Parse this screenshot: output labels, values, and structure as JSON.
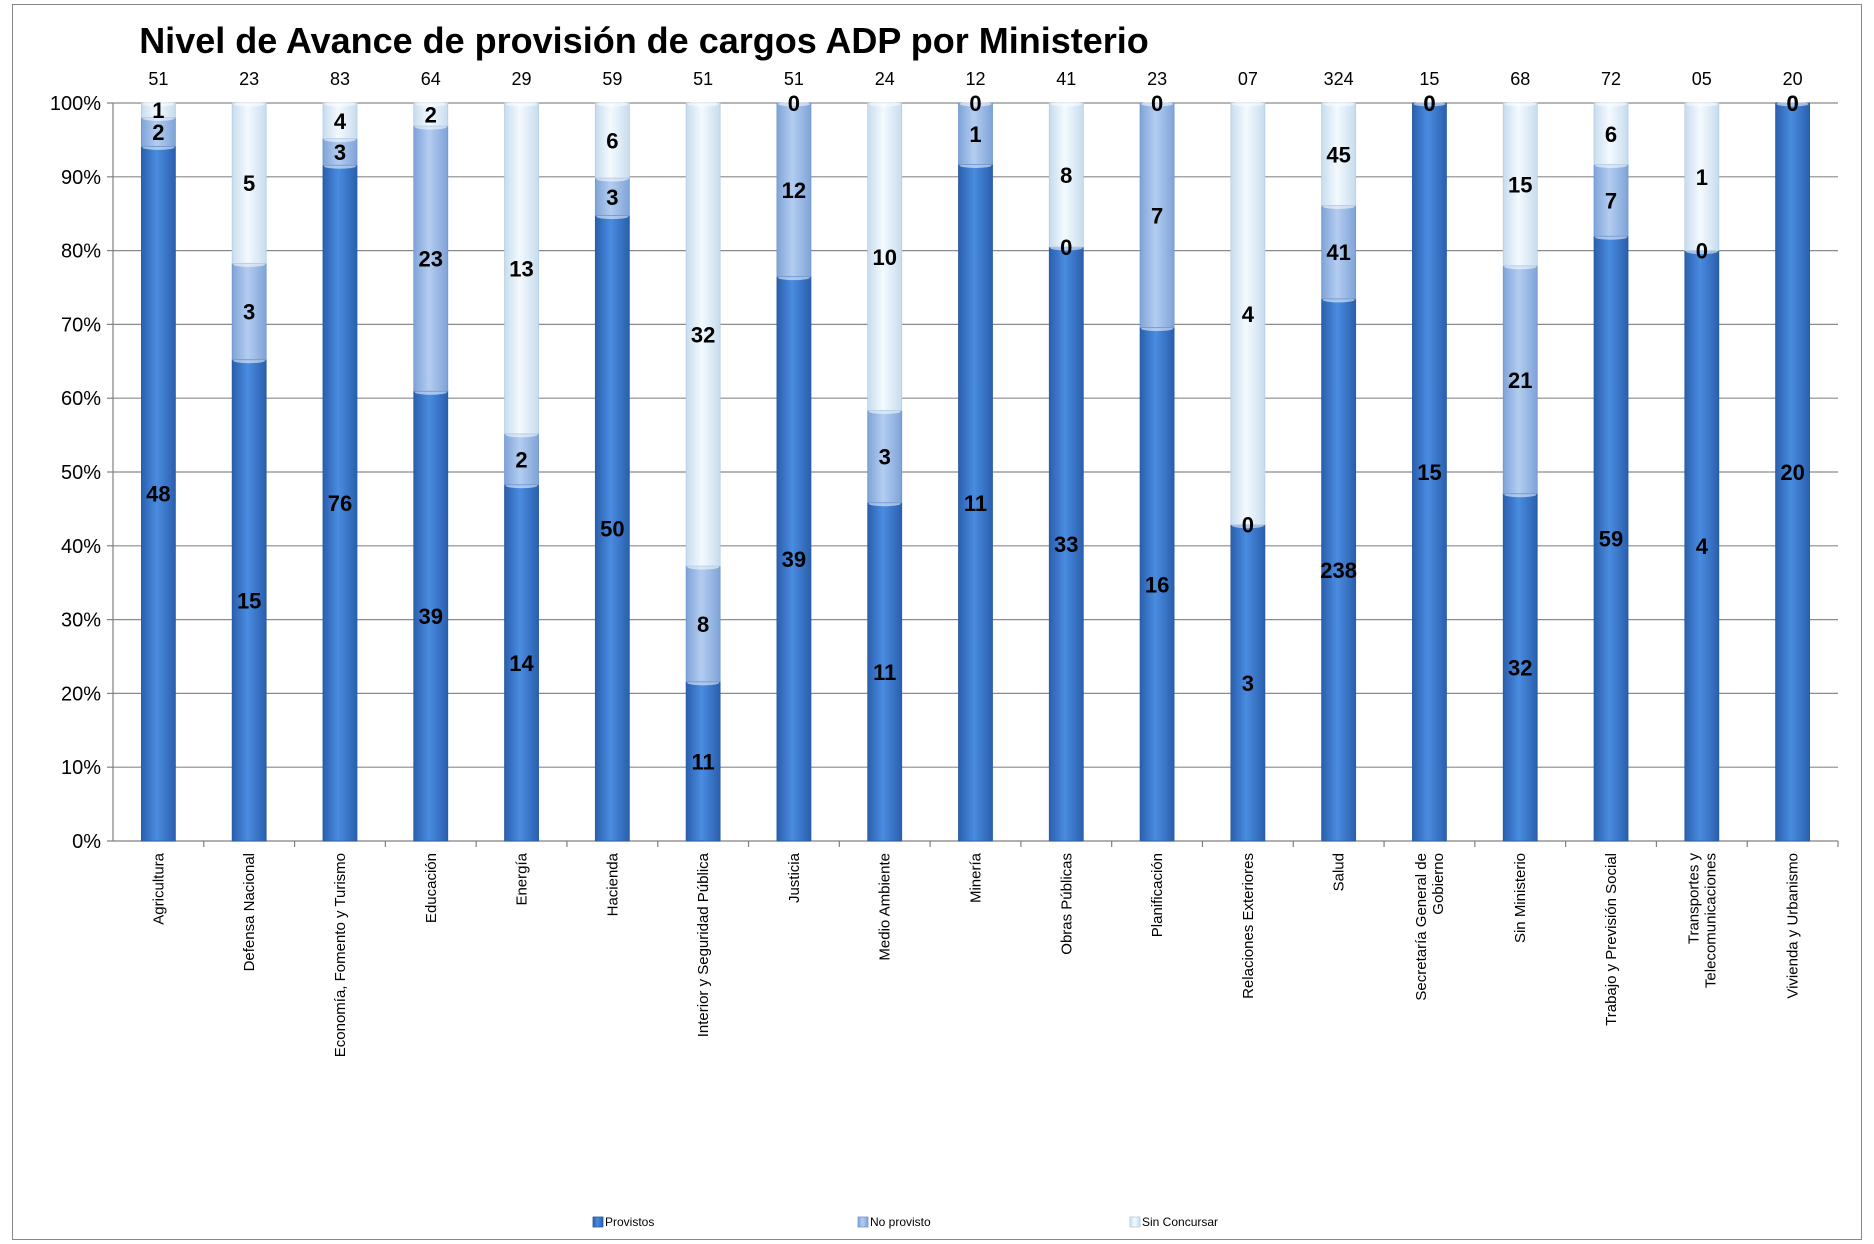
{
  "chart_data": {
    "type": "bar",
    "stacked": "percent",
    "title": "Nivel de  Avance de provisión de cargos ADP por Ministerio",
    "y_ticks": [
      "0%",
      "10%",
      "20%",
      "30%",
      "40%",
      "50%",
      "60%",
      "70%",
      "80%",
      "90%",
      "100%"
    ],
    "ylim": [
      0,
      100
    ],
    "grid": true,
    "legend_position": "bottom",
    "categories": [
      "Agricultura",
      "Defensa Nacional",
      "Economía, Fomento y Turismo",
      "Educación",
      "Energía",
      "Hacienda",
      "Interior y Seguridad Pública",
      "Justicia",
      "Medio Ambiente",
      "Minería",
      "Obras Públicas",
      "Planificación",
      "Relaciones Exteriores",
      "Salud",
      "Secretaría General de Gobierno",
      "Sin Ministerio",
      "Trabajo y Previsión Social",
      "Transportes y Telecomunicaciones",
      "Vivienda y Urbanismo"
    ],
    "totals": [
      "51",
      "23",
      "83",
      "64",
      "29",
      "59",
      "51",
      "51",
      "24",
      "12",
      "41",
      "23",
      "07",
      "324",
      "15",
      "68",
      "72",
      "05",
      "20"
    ],
    "series": [
      {
        "name": "Provistos",
        "color": "#3a7bd0",
        "values": [
          48,
          15,
          76,
          39,
          14,
          50,
          11,
          39,
          11,
          11,
          33,
          16,
          3,
          238,
          15,
          32,
          59,
          4,
          20
        ]
      },
      {
        "name": "No provisto",
        "color": "#9bbbe9",
        "values": [
          2,
          3,
          3,
          23,
          2,
          3,
          8,
          12,
          3,
          1,
          0,
          7,
          0,
          41,
          0,
          21,
          7,
          0,
          0
        ]
      },
      {
        "name": "Sin Concursar",
        "color": "#e4f1fa",
        "values": [
          1,
          5,
          4,
          2,
          13,
          6,
          32,
          0,
          10,
          0,
          8,
          0,
          4,
          45,
          0,
          15,
          6,
          1,
          0
        ]
      }
    ]
  }
}
